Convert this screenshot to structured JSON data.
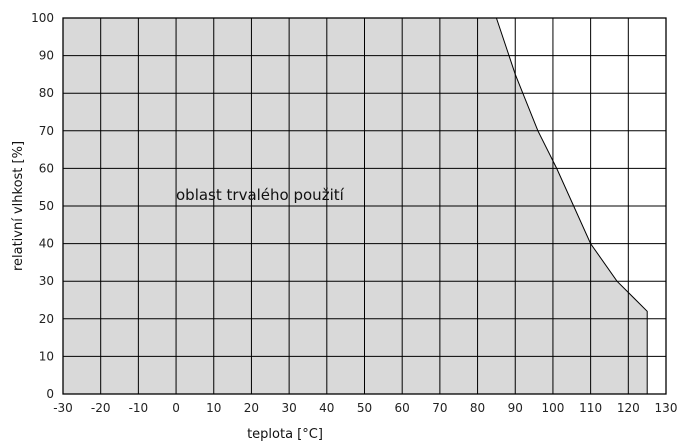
{
  "chart_data": {
    "type": "area",
    "title": "",
    "xlabel": "teplota [°C]",
    "ylabel": "relativní vlhkost [%]",
    "xlim": [
      -30,
      130
    ],
    "ylim": [
      0,
      100
    ],
    "xticks": [
      "-30",
      "-20",
      "-10",
      "0",
      "10",
      "20",
      "30",
      "40",
      "50",
      "60",
      "70",
      "80",
      "90",
      "100",
      "110",
      "120",
      "130"
    ],
    "yticks": [
      "0",
      "10",
      "20",
      "30",
      "40",
      "50",
      "60",
      "70",
      "80",
      "90",
      "100"
    ],
    "grid": true,
    "fill_color": "#d9d9d9",
    "grid_color": "#000000",
    "annotation": "oblast trvalého použití",
    "boundary": {
      "x": [
        -30,
        -30,
        85,
        90,
        96,
        101,
        110,
        117,
        125,
        125
      ],
      "y": [
        0,
        100,
        100,
        85,
        70,
        60,
        40,
        30,
        22,
        0
      ]
    }
  }
}
